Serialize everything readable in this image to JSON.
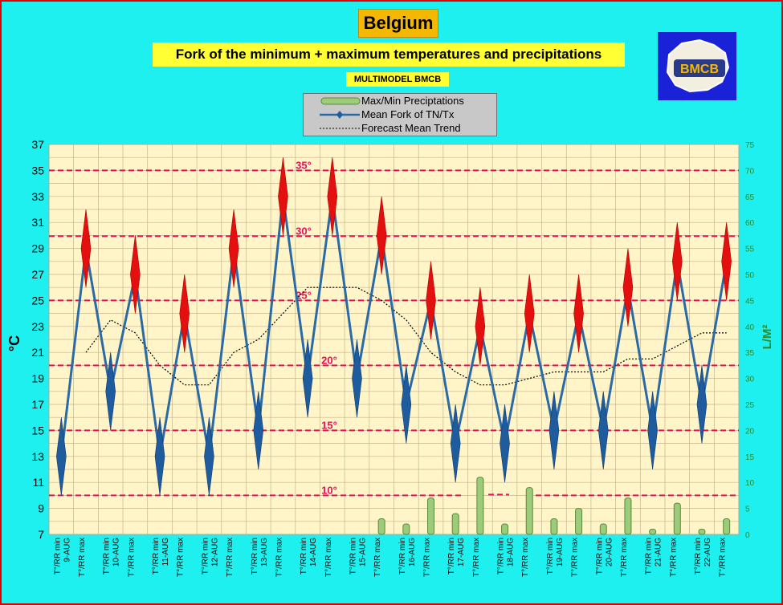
{
  "header": {
    "country": "Belgium",
    "subtitle": "Fork of the minimum + maximum temperatures and precipitations",
    "model": "MULTIMODEL BMCB",
    "logo_text": "BMCB"
  },
  "legend": {
    "items": [
      "Max/Min Preciptations",
      "Mean Fork of TN/Tx",
      "Forecast Mean Trend"
    ]
  },
  "colors": {
    "background": "#1ef0f0",
    "plot_area": "#fff5c8",
    "grid": "#c8b48c",
    "fork_line": "#2a6aa6",
    "diamond_blue": "#1f5c9e",
    "diamond_red": "#e41010",
    "trend": "#000000",
    "reference_line": "#e8105a",
    "precip_bar": "#9ccc7a",
    "right_axis": "#2c8a2c"
  },
  "chart_data": {
    "type": "line",
    "ylabel": "°C",
    "ylabel_right": "L/M²",
    "ylim": [
      7,
      37
    ],
    "y_ticks": [
      7,
      9,
      11,
      13,
      15,
      17,
      19,
      21,
      23,
      25,
      27,
      29,
      31,
      33,
      35,
      37
    ],
    "ylim_right": [
      0,
      75
    ],
    "y_ticks_right": [
      0,
      5,
      10,
      15,
      20,
      25,
      30,
      35,
      40,
      45,
      50,
      55,
      60,
      65,
      70,
      75
    ],
    "grid": true,
    "legend_position": "top-center",
    "x_labels": [
      [
        "T°/RR min",
        "9-AUG"
      ],
      [
        "T°/RR max",
        ""
      ],
      [
        "T°/RR min",
        "10-AUG"
      ],
      [
        "T°/RR max",
        ""
      ],
      [
        "T°/RR min",
        "11-AUG"
      ],
      [
        "T°/RR max",
        ""
      ],
      [
        "T°/RR min",
        "12-AUG"
      ],
      [
        "T°/RR max",
        ""
      ],
      [
        "T°/RR min",
        "13-AUG"
      ],
      [
        "T°/RR max",
        ""
      ],
      [
        "T°/RR min",
        "14-AUG"
      ],
      [
        "T°/RR max",
        ""
      ],
      [
        "T°/RR min",
        "15-AUG"
      ],
      [
        "T°/RR max",
        ""
      ],
      [
        "T°/RR min",
        "16-AUG"
      ],
      [
        "T°/RR max",
        ""
      ],
      [
        "T°/RR min",
        "17-AUG"
      ],
      [
        "T°/RR max",
        ""
      ],
      [
        "T°/RR min",
        "18-AUG"
      ],
      [
        "T°/RR max",
        ""
      ],
      [
        "T°/RR min",
        "19-AUG"
      ],
      [
        "T°/RR max",
        ""
      ],
      [
        "T°/RR min",
        "20-AUG"
      ],
      [
        "T°/RR max",
        ""
      ],
      [
        "T°/RR min",
        "21-AUG"
      ],
      [
        "T°/RR max",
        ""
      ],
      [
        "T°/RR min",
        "22-AUG"
      ],
      [
        "T°/RR max",
        ""
      ]
    ],
    "series": [
      {
        "name": "Mean Fork of TN/Tx",
        "values": [
          13,
          29,
          18,
          27,
          13,
          24,
          13,
          29,
          15,
          33,
          19,
          33,
          19,
          30,
          17,
          25,
          14,
          23,
          14,
          24,
          15,
          24,
          15,
          26,
          15,
          28,
          17,
          28
        ],
        "spread": [
          3,
          3,
          3,
          3,
          3,
          3,
          3,
          3,
          3,
          3,
          3,
          3,
          3,
          3,
          3,
          3,
          3,
          3,
          3,
          3,
          3,
          3,
          3,
          3,
          3,
          3,
          3,
          3
        ]
      },
      {
        "name": "Forecast Mean Trend",
        "values": [
          null,
          21,
          23.5,
          22.5,
          20,
          18.5,
          18.5,
          21,
          22,
          24,
          26,
          26,
          26,
          25,
          23.5,
          21,
          19.5,
          18.5,
          18.5,
          19,
          19.5,
          19.5,
          19.5,
          20.5,
          20.5,
          21.5,
          22.5,
          22.5
        ]
      },
      {
        "name": "Max/Min Preciptations",
        "axis": "right",
        "values": [
          0,
          0,
          0,
          0,
          0,
          0,
          0,
          0,
          0,
          0,
          0,
          0,
          0,
          3,
          2,
          7,
          4,
          11,
          2,
          9,
          3,
          5,
          2,
          7,
          1,
          6,
          1,
          3
        ]
      }
    ],
    "reference_lines": [
      {
        "value": 35,
        "label": "35°"
      },
      {
        "value": 30,
        "label": "30°"
      },
      {
        "value": 25,
        "label": "25°"
      },
      {
        "value": 20,
        "label": "20°"
      },
      {
        "value": 15,
        "label": "15°"
      },
      {
        "value": 10,
        "label": "10°"
      }
    ]
  }
}
